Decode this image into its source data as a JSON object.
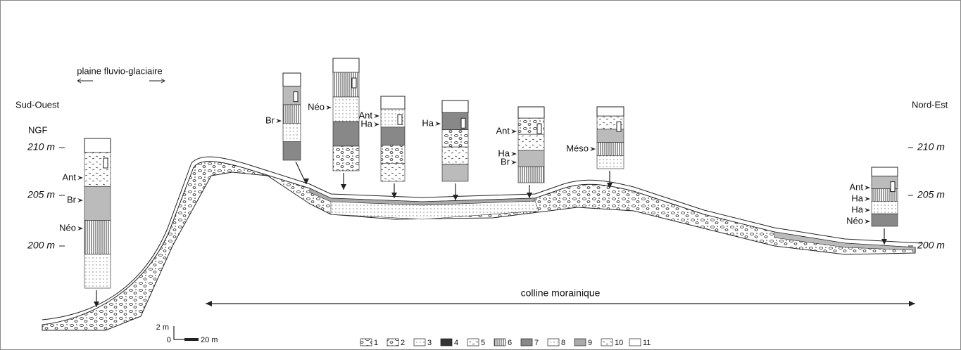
{
  "header": {
    "plain": "plaine fluvio-glaciaire",
    "left_side": "Sud-Ouest",
    "right_side": "Nord-Est",
    "datum": "NGF"
  },
  "elevations_left": [
    "210 m",
    "205 m",
    "200 m"
  ],
  "elevations_right": [
    "210 m",
    "205 m",
    "200 m"
  ],
  "columns": [
    {
      "labels": [
        "Ant",
        "Br",
        "Néo"
      ]
    },
    {
      "labels": [
        "Br"
      ]
    },
    {
      "labels": [
        "Néo"
      ]
    },
    {
      "labels": [
        "Ant",
        "Ha"
      ]
    },
    {
      "labels": [
        "Ha"
      ]
    },
    {
      "labels": [
        "Ant",
        "Ha",
        "Br"
      ]
    },
    {
      "labels": [
        "Méso"
      ]
    },
    {
      "labels": [
        "Ant",
        "Ha",
        "Ha",
        "Néo"
      ]
    }
  ],
  "annotation": "colline morainique",
  "scale": {
    "vertical": "2 m",
    "origin": "0",
    "horizontal": "20 m"
  },
  "legend": [
    "1",
    "2",
    "3",
    "4",
    "5",
    "6",
    "7",
    "8",
    "9",
    "10",
    "11"
  ]
}
